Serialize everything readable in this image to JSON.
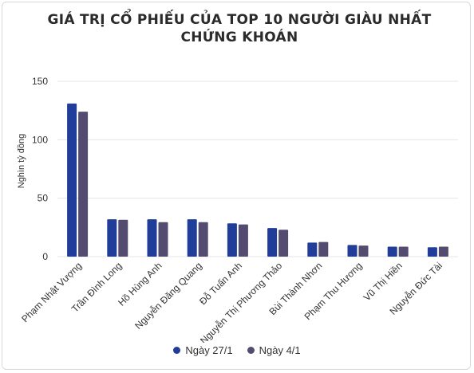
{
  "chart_data": {
    "type": "bar",
    "title": "GIÁ TRỊ CỔ PHIẾU CỦA TOP 10 NGƯỜI GIÀU NHẤT CHỨNG KHOÁN",
    "xlabel": "",
    "ylabel": "Nghìn tỷ đồng",
    "ylim": [
      0,
      150
    ],
    "yticks": [
      "0",
      "50",
      "100",
      "150"
    ],
    "grid": true,
    "legend_position": "bottom",
    "categories": [
      "Phạm Nhật Vượng",
      "Trần Đình Long",
      "Hồ Hùng Anh",
      "Nguyễn Đăng Quang",
      "Đỗ Tuấn Anh",
      "Nguyễn Thị Phương Thảo",
      "Bùi Thành Nhơn",
      "Phạm Thu Hương",
      "Vũ Thị Hiền",
      "Nguyễn Đức Tài"
    ],
    "series": [
      {
        "name": "Ngày 27/1",
        "color": "#1f3d99",
        "values": [
          131,
          32,
          32,
          32,
          28.5,
          24.5,
          12,
          10,
          8.5,
          8
        ]
      },
      {
        "name": "Ngày 4/1",
        "color": "#544c70",
        "values": [
          124,
          31.5,
          29.5,
          29.5,
          27.5,
          23,
          12.5,
          9.5,
          8.5,
          8.5
        ]
      }
    ]
  }
}
